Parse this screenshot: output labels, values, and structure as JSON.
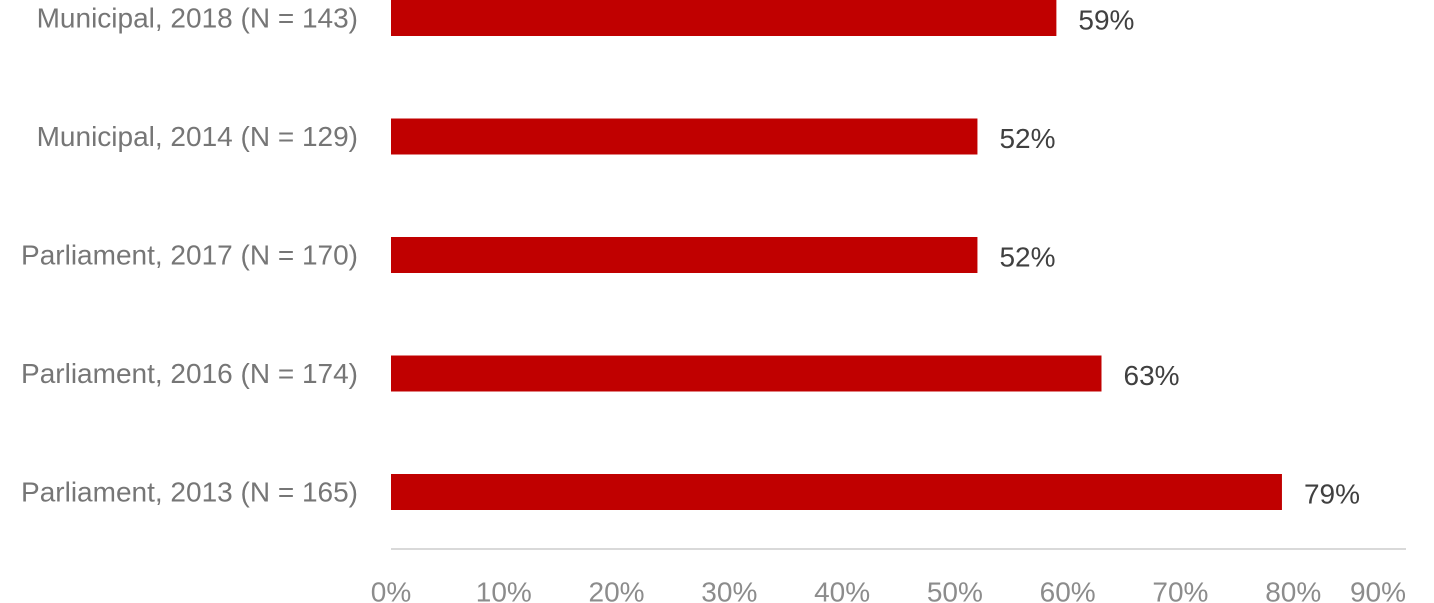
{
  "chart_data": {
    "type": "bar",
    "orientation": "horizontal",
    "categories": [
      "Municipal, 2018 (N = 143)",
      "Municipal, 2014 (N = 129)",
      "Parliament, 2017 (N = 170)",
      "Parliament, 2016 (N = 174)",
      "Parliament, 2013 (N = 165)"
    ],
    "values": [
      59,
      52,
      52,
      63,
      79
    ],
    "value_labels": [
      "59%",
      "52%",
      "52%",
      "63%",
      "79%"
    ],
    "xlim": [
      0,
      90
    ],
    "xticks": [
      "0%",
      "10%",
      "20%",
      "30%",
      "40%",
      "50%",
      "60%",
      "70%",
      "80%",
      "90%"
    ],
    "title": "",
    "xlabel": "",
    "ylabel": "",
    "grid": false,
    "bar_color": "#c00000",
    "axis_color": "#d9d9d9"
  }
}
